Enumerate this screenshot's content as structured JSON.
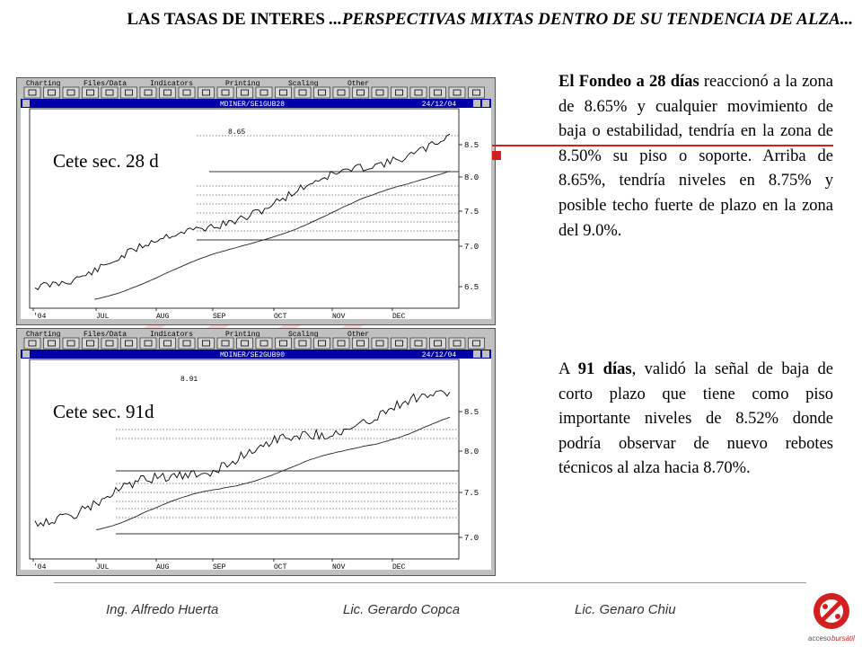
{
  "title": {
    "main": "LAS TASAS DE INTERES",
    "rest": " ...PERSPECTIVAS MIXTAS DENTRO DE SU TENDENCIA DE ALZA..."
  },
  "menu_items": [
    "Charting",
    "Files/Data",
    "Indicators",
    "Printing",
    "Scaling",
    "Other"
  ],
  "chart1": {
    "window_title": "MDINER/SE1GUB28",
    "date": "24/12/04",
    "label": "Cete sec. 28 d",
    "annotation": "8.65",
    "y_ticks": [
      "8.5",
      "8.0",
      "7.5",
      "7.0",
      "6.5"
    ],
    "x_ticks": [
      "'04",
      "JUL",
      "AUG",
      "SEP",
      "OCT",
      "NOV",
      "DEC"
    ]
  },
  "chart2": {
    "window_title": "MDINER/SE2GUB90",
    "date": "24/12/04",
    "label": "Cete sec. 91d",
    "annotation": "8.91",
    "y_ticks": [
      "8.5",
      "8.0",
      "7.5",
      "7.0"
    ],
    "x_ticks": [
      "'04",
      "JUL",
      "AUG",
      "SEP",
      "OCT",
      "NOV",
      "DEC"
    ]
  },
  "text1": {
    "bold": "El Fondeo a 28 días",
    "rest": " reaccionó a la zona de 8.65% y cualquier movimiento de baja o estabilidad, tendría en la zona de 8.50% su piso o soporte. Arriba de 8.65%, tendría niveles en 8.75% y posible techo fuerte de plazo en la zona del 9.0%."
  },
  "text2": {
    "pre": "A ",
    "bold": "91 días",
    "rest": ", validó la señal de baja de corto plazo que tiene como piso importante niveles de 8.52% donde podría observar de nuevo rebotes técnicos al alza hacia 8.70%."
  },
  "footer": {
    "author1": "Ing. Alfredo Huerta",
    "author2": "Lic. Gerardo Copca",
    "author3": "Lic. Genaro Chiu"
  },
  "logo": {
    "text_a": "acceso",
    "text_b": "bursátil"
  },
  "colors": {
    "accent_red": "#d21f1f",
    "window_blue": "#0000a8",
    "panel_gray": "#c0c0c0"
  }
}
